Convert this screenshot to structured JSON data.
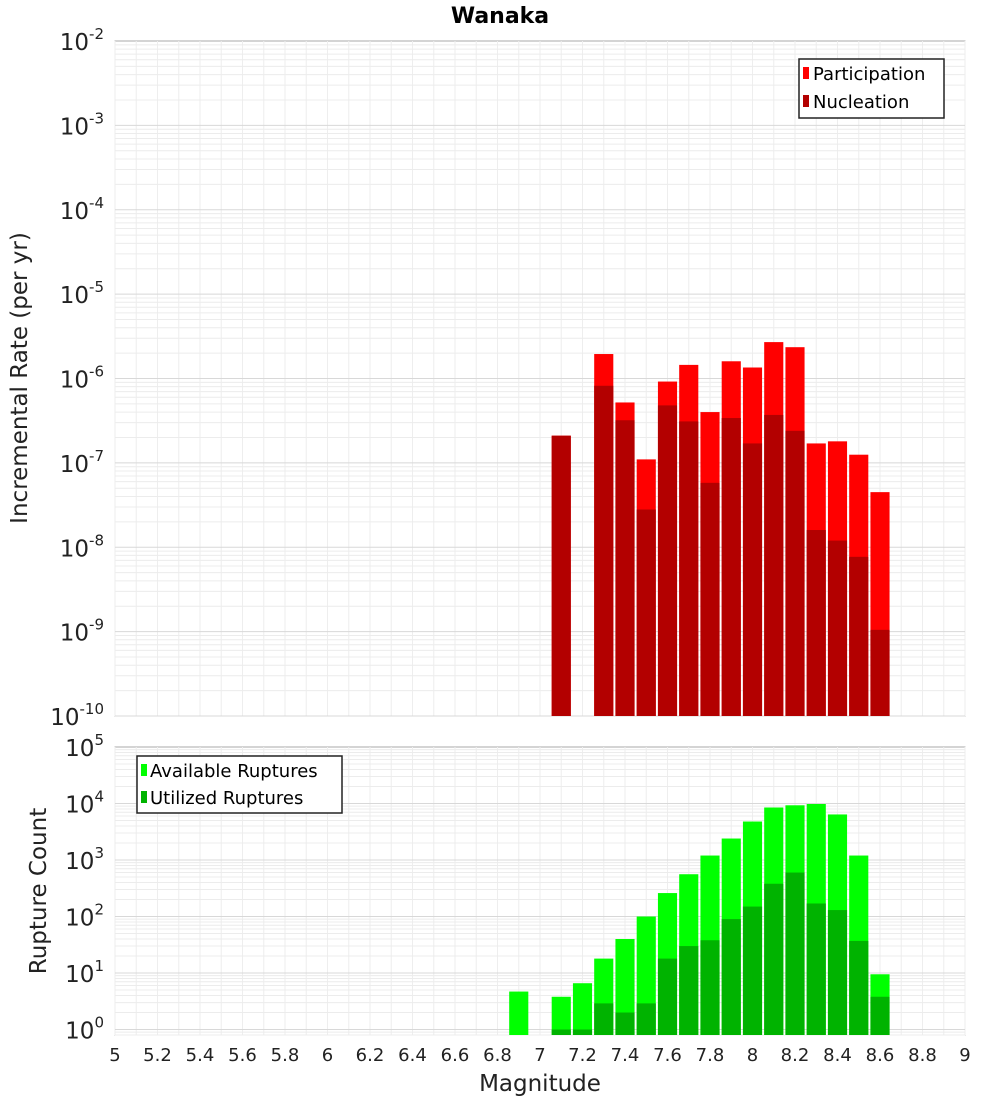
{
  "chart_data": [
    {
      "type": "bar",
      "title": "Wanaka",
      "xlabel": "",
      "ylabel": "Incremental Rate (per yr)",
      "yscale": "log",
      "ylim": [
        1e-10,
        0.01
      ],
      "xlim": [
        5,
        9
      ],
      "grid": true,
      "legend_position": "top-right",
      "x": [
        7.1,
        7.3,
        7.4,
        7.5,
        7.6,
        7.7,
        7.8,
        7.9,
        8.0,
        8.1,
        8.2,
        8.3,
        8.4,
        8.5,
        8.6
      ],
      "series": [
        {
          "name": "Participation",
          "color": "#ff0000",
          "values": [
            2.1e-07,
            1.95e-06,
            5.2e-07,
            1.1e-07,
            9.2e-07,
            1.45e-06,
            4e-07,
            1.6e-06,
            1.35e-06,
            2.7e-06,
            2.35e-06,
            1.7e-07,
            1.8e-07,
            1.25e-07,
            4.5e-08
          ]
        },
        {
          "name": "Nucleation",
          "color": "#b30000",
          "values": [
            2.1e-07,
            8.2e-07,
            3.2e-07,
            2.8e-08,
            4.8e-07,
            3.1e-07,
            5.8e-08,
            3.4e-07,
            1.7e-07,
            3.7e-07,
            2.4e-07,
            1.6e-08,
            1.2e-08,
            7.7e-09,
            1.05e-09
          ]
        }
      ],
      "yticks": [
        {
          "base": "10",
          "exp": "-10"
        },
        {
          "base": "10",
          "exp": "-9"
        },
        {
          "base": "10",
          "exp": "-8"
        },
        {
          "base": "10",
          "exp": "-7"
        },
        {
          "base": "10",
          "exp": "-6"
        },
        {
          "base": "10",
          "exp": "-5"
        },
        {
          "base": "10",
          "exp": "-4"
        },
        {
          "base": "10",
          "exp": "-3"
        },
        {
          "base": "10",
          "exp": "-2"
        }
      ]
    },
    {
      "type": "bar",
      "title": "",
      "xlabel": "Magnitude",
      "ylabel": "Rupture Count",
      "yscale": "log",
      "ylim": [
        0.8,
        100000.0
      ],
      "xlim": [
        5,
        9
      ],
      "grid": true,
      "legend_position": "top-left",
      "x": [
        6.9,
        7.1,
        7.2,
        7.3,
        7.4,
        7.5,
        7.6,
        7.7,
        7.8,
        7.9,
        8.0,
        8.1,
        8.2,
        8.3,
        8.4,
        8.5,
        8.6
      ],
      "series": [
        {
          "name": "Available Ruptures",
          "color": "#00ff00",
          "values": [
            4.7,
            3.8,
            6.6,
            18,
            40,
            100,
            260,
            560,
            1200,
            2400,
            4800,
            8500,
            9300,
            9800,
            6400,
            1200,
            9.5
          ]
        },
        {
          "name": "Utilized Ruptures",
          "color": "#00b300",
          "values": [
            null,
            1,
            1,
            2.9,
            2,
            2.9,
            18,
            30,
            38,
            90,
            150,
            380,
            600,
            170,
            130,
            37,
            3.8
          ]
        }
      ],
      "yticks": [
        {
          "base": "10",
          "exp": "0"
        },
        {
          "base": "10",
          "exp": "1"
        },
        {
          "base": "10",
          "exp": "2"
        },
        {
          "base": "10",
          "exp": "3"
        },
        {
          "base": "10",
          "exp": "4"
        },
        {
          "base": "10",
          "exp": "5"
        }
      ],
      "xticks": [
        "5",
        "5.2",
        "5.4",
        "5.6",
        "5.8",
        "6",
        "6.2",
        "6.4",
        "6.6",
        "6.8",
        "7",
        "7.2",
        "7.4",
        "7.6",
        "7.8",
        "8",
        "8.2",
        "8.4",
        "8.6",
        "8.8",
        "9"
      ]
    }
  ]
}
